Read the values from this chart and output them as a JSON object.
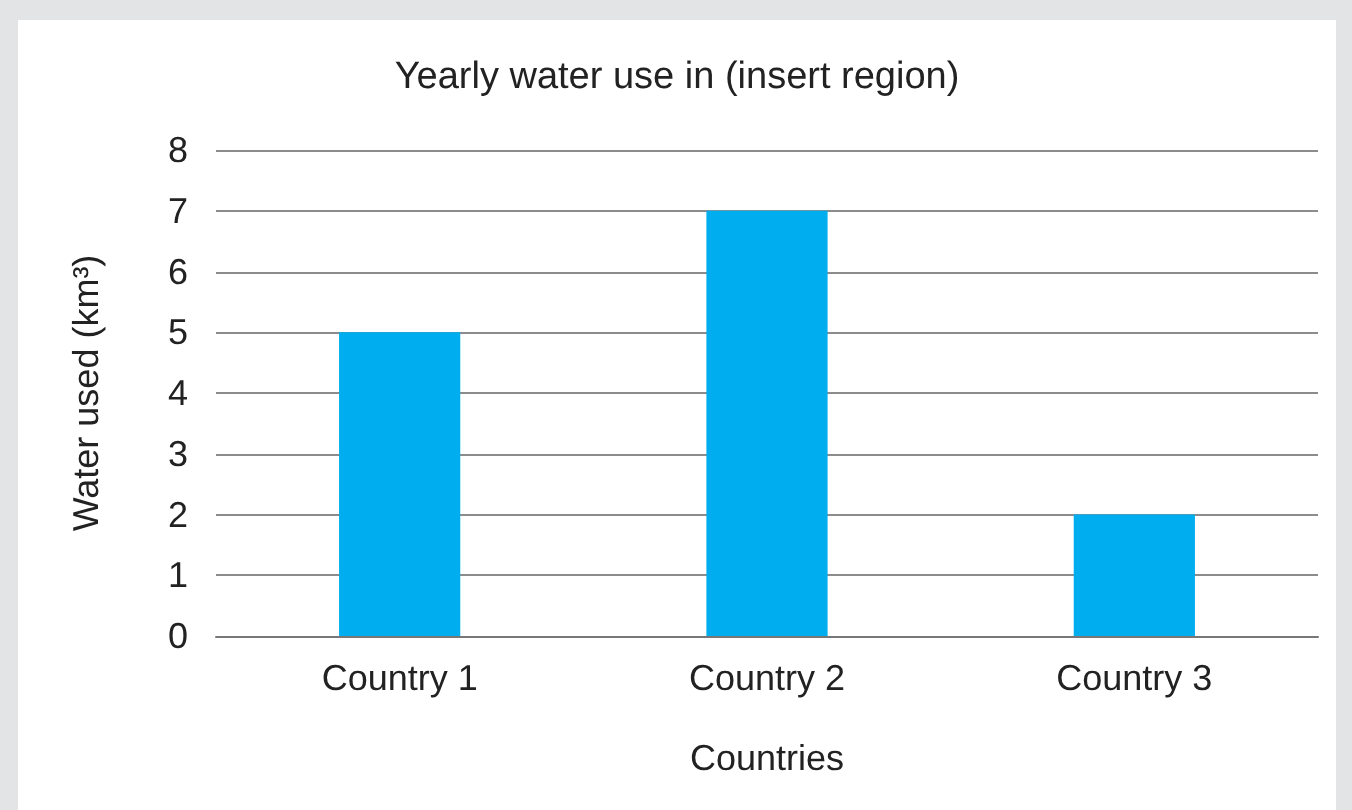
{
  "chart_data": {
    "type": "bar",
    "title": "Yearly water use in (insert region)",
    "xlabel": "Countries",
    "ylabel": "Water used (km³)",
    "categories": [
      "Country 1",
      "Country 2",
      "Country 3"
    ],
    "values": [
      5,
      7,
      2
    ],
    "color": "#00aeef",
    "ylim": [
      0,
      8
    ],
    "yticks": [
      0,
      1,
      2,
      3,
      4,
      5,
      6,
      7,
      8
    ],
    "grid": "y"
  }
}
